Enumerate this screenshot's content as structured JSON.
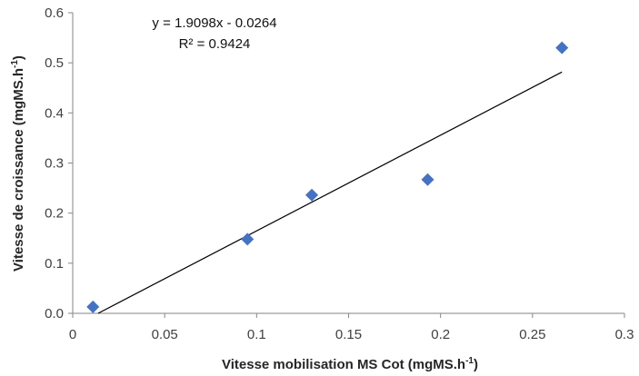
{
  "chart_data": {
    "type": "scatter",
    "title": "",
    "xlabel": "Vitesse mobilisation  MS Cot (mgMS.h",
    "xlabel_sup": "-1",
    "xlabel_suffix": ")",
    "ylabel": "Vitesse de croissance  (mgMS.h",
    "ylabel_sup": "-1",
    "ylabel_suffix": ")",
    "xlim": [
      0,
      0.3
    ],
    "ylim": [
      0,
      0.6
    ],
    "x_ticks": [
      "0",
      "0.05",
      "0.1",
      "0.15",
      "0.2",
      "0.25",
      "0.3"
    ],
    "y_ticks": [
      "0.0",
      "0.1",
      "0.2",
      "0.3",
      "0.4",
      "0.5",
      "0.6"
    ],
    "grid": false,
    "series": [
      {
        "marker": "diamond",
        "color": "#4472C4",
        "points": [
          {
            "x": 0.011,
            "y": 0.013
          },
          {
            "x": 0.095,
            "y": 0.148
          },
          {
            "x": 0.13,
            "y": 0.236
          },
          {
            "x": 0.193,
            "y": 0.267
          },
          {
            "x": 0.266,
            "y": 0.53
          }
        ]
      }
    ],
    "trendline": {
      "type": "linear",
      "slope": 1.9098,
      "intercept": -0.0264,
      "x_range": [
        0.0138,
        0.266
      ],
      "color": "#000000"
    },
    "annotations": {
      "equation": "y = 1.9098x - 0.0264",
      "r_squared": "R² = 0.9424"
    }
  }
}
